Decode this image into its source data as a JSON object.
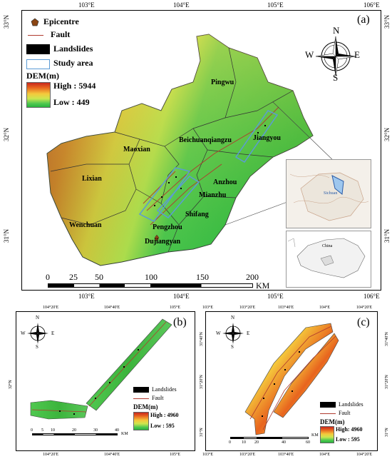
{
  "panel_a": {
    "tag": "(a)",
    "top_ticks": [
      "103°E",
      "104°E",
      "105°E",
      "106°E"
    ],
    "bottom_ticks": [
      "103°E",
      "104°E",
      "105°E",
      "106°E"
    ],
    "left_ticks": [
      "33°N",
      "32°N",
      "31°N"
    ],
    "right_ticks": [
      "33°N",
      "32°N",
      "31°N"
    ],
    "legend": {
      "epicentre": "Epicentre",
      "fault": "Fault",
      "landslides": "Landslides",
      "study_area": "Study area",
      "dem_title": "DEM(m)",
      "high": "High : 5944",
      "low": "Low : 449"
    },
    "places": {
      "pingwu": "Pingwu",
      "beichuan": "Beichuanqiangzu",
      "jiangyou": "Jiangyou",
      "maoxian": "Maoxian",
      "lixian": "Lixian",
      "anzhou": "Anzhou",
      "mianzhu": "Mianzhu",
      "shifang": "Shifang",
      "pengzhou": "Pengzhou",
      "wenchuan": "Wenchuan",
      "dujiangyan": "Dujiangyan"
    },
    "compass": {
      "n": "N",
      "s": "S",
      "e": "E",
      "w": "W"
    },
    "scale_labels": [
      "0",
      "25",
      "50",
      "100",
      "150",
      "200"
    ],
    "scale_unit": "KM",
    "inset_sichuan": "Sichuan",
    "inset_china": "China"
  },
  "panel_b": {
    "tag": "(b)",
    "top_ticks": [
      "104°20'E",
      "104°40'E",
      "105°E"
    ],
    "bottom_ticks": [
      "104°20'E",
      "104°40'E",
      "105°E"
    ],
    "left_tick": "32°N",
    "legend": {
      "landslides": "Landslides",
      "fault": "Fault",
      "dem_title": "DEM(m)",
      "high": "High : 4960",
      "low": "Low : 595"
    },
    "compass": {
      "n": "N",
      "s": "S",
      "e": "E",
      "w": "W"
    },
    "scale_labels": [
      "0",
      "5",
      "10",
      "20",
      "30",
      "40"
    ],
    "scale_unit": "KM"
  },
  "panel_c": {
    "tag": "(c)",
    "top_ticks": [
      "103°E",
      "103°20'E",
      "103°40'E",
      "104°E",
      "104°20'E"
    ],
    "bottom_ticks": [
      "103°E",
      "103°20'E",
      "103°40'E",
      "104°E",
      "104°20'E"
    ],
    "left_ticks": [
      "31°40'N",
      "31°20'N",
      "31°N"
    ],
    "right_ticks": [
      "31°40'N",
      "31°20'N",
      "31°N"
    ],
    "legend": {
      "landslides": "Landslides",
      "fault": "Fault",
      "dem_title": "DEM(m)",
      "high": "High: 4960",
      "low": "Low : 595"
    },
    "compass": {
      "n": "N",
      "s": "S",
      "e": "E",
      "w": "W"
    },
    "scale_labels": [
      "0",
      "10",
      "20",
      "40",
      "60"
    ],
    "scale_unit": "KM"
  },
  "colors": {
    "dem_high": "#c8281e",
    "dem_mid": "#f5c83c",
    "dem_low": "#28b43c",
    "fault": "#b03a2e",
    "study_area": "#5b9bd5",
    "epicentre": "#8b4513"
  }
}
